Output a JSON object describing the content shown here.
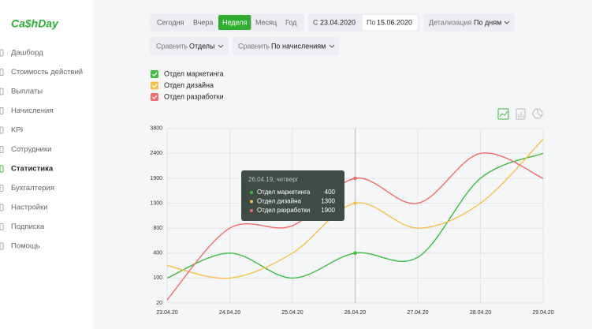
{
  "sidebar": {
    "logo": "Ca$hDay",
    "menu": [
      "Дашборд",
      "Стоимость действий",
      "Выплаты",
      "Начисления",
      "KPI",
      "Сотрудники",
      "Статистика",
      "Бухгалтерия",
      "Настройки",
      "Подписка",
      "Помощь"
    ],
    "active": 6
  },
  "filters": {
    "periods": [
      "Сегодня",
      "Вчера",
      "Неделя",
      "Месяц",
      "Год"
    ],
    "active_period": 2,
    "from_label": "С",
    "from": "23.04.2020",
    "to_label": "По",
    "to": "15.06.2020",
    "detail_label": "Детализация",
    "detail": "По дням",
    "compare1_label": "Сравнить",
    "compare1": "Отделы",
    "compare2_label": "Сравнить",
    "compare2": "По начислениям"
  },
  "chart_data": {
    "type": "line",
    "categories": [
      "23.04.20",
      "24.04.20",
      "25.04.20",
      "26.04.20",
      "27.04.20",
      "28.04.20",
      "29.04.20"
    ],
    "series": [
      {
        "name": "Отдел маркетинга",
        "color": "#3dbb3d",
        "values": [
          100,
          400,
          100,
          400,
          350,
          1900,
          2400
        ]
      },
      {
        "name": "Отдел дизайна",
        "color": "#f7c04a",
        "values": [
          250,
          100,
          400,
          1300,
          800,
          1300,
          3200
        ]
      },
      {
        "name": "Отдел разработки",
        "color": "#f26b6b",
        "values": [
          30,
          800,
          850,
          1900,
          1300,
          2400,
          1900
        ]
      }
    ],
    "ylim": [
      20,
      3800
    ],
    "yticks": [
      20,
      100,
      400,
      800,
      1300,
      1900,
      2400,
      3800
    ],
    "grid": true,
    "tooltip": {
      "title": "26.04.19, четверг",
      "category_index": 3
    }
  }
}
